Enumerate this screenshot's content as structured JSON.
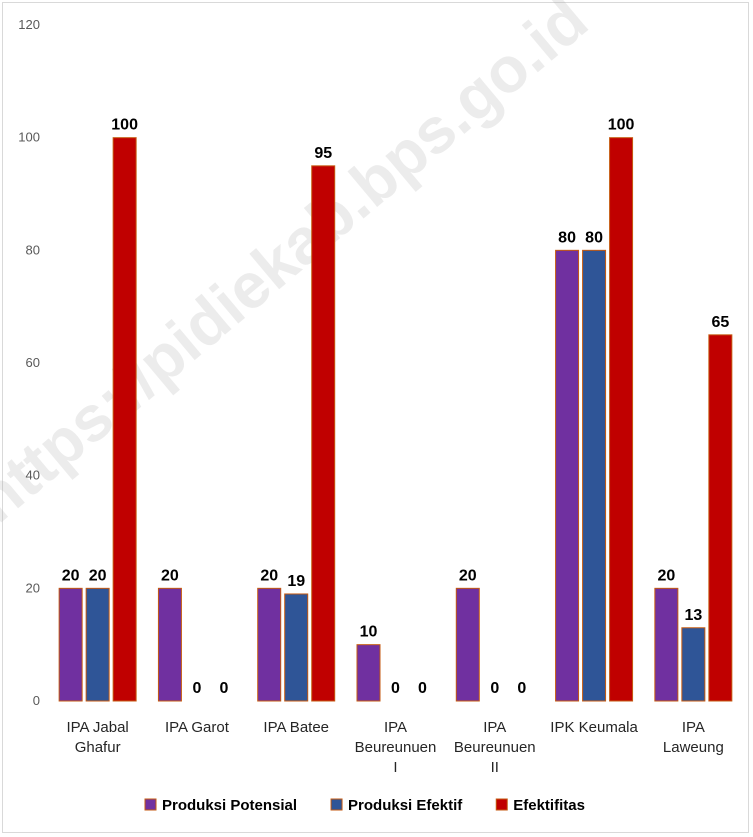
{
  "watermark": "https://pidiekab.bps.go.id",
  "chart_data": {
    "type": "bar",
    "categories": [
      [
        "IPA Jabal",
        "Ghafur"
      ],
      [
        "IPA Garot"
      ],
      [
        "IPA Batee"
      ],
      [
        "IPA",
        "Beureunuen",
        "I"
      ],
      [
        "IPA",
        "Beureunuen",
        "II"
      ],
      [
        "IPK Keumala"
      ],
      [
        "IPA",
        "Laweung"
      ]
    ],
    "series": [
      {
        "name": "Produksi Potensial",
        "color": "#7030a0",
        "values": [
          20,
          20,
          20,
          10,
          20,
          80,
          20
        ]
      },
      {
        "name": "Produksi Efektif",
        "color": "#2f5597",
        "values": [
          20,
          0,
          19,
          0,
          0,
          80,
          13
        ]
      },
      {
        "name": "Efektifitas",
        "color": "#c00000",
        "values": [
          100,
          0,
          95,
          0,
          0,
          100,
          65
        ]
      }
    ],
    "title": "",
    "xlabel": "",
    "ylabel": "",
    "ylim": [
      0,
      120
    ],
    "yticks": [
      0,
      20,
      40,
      60,
      80,
      100,
      120
    ],
    "grid": false,
    "legend_position": "bottom",
    "bar_outline_color": "#c55a11"
  }
}
